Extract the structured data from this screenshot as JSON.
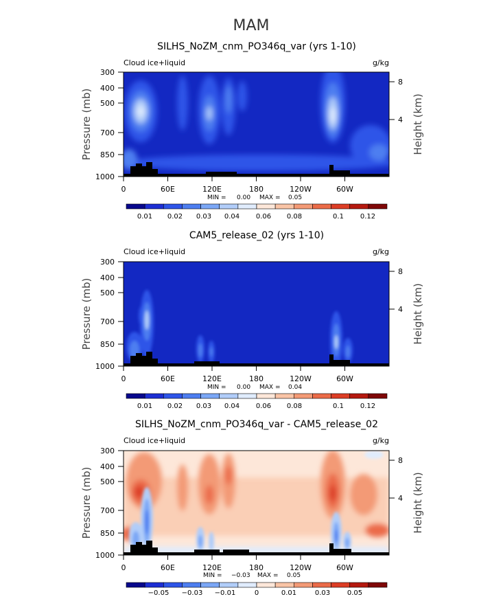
{
  "page": {
    "title": "MAM"
  },
  "palette": {
    "seq": [
      "#08088c",
      "#1d2ed3",
      "#2e55e8",
      "#4d7ef0",
      "#7ba7f6",
      "#b1cdf9",
      "#e0ecfd",
      "#fde7d9",
      "#f9c4a6",
      "#f39a76",
      "#eb6b48",
      "#dc3d25",
      "#b5190f",
      "#7f0707"
    ],
    "bg_dark": "#1328c2"
  },
  "chart_data": [
    {
      "type": "contour",
      "title": "SILHS_NoZM_cnm_PO346q_var (yrs 1-10)",
      "variable": "Cloud ice+liquid",
      "units": "g/kg",
      "ylabel": "Pressure (mb)",
      "ylabel_right": "Height (km)",
      "x_ticks": [
        "0",
        "60E",
        "120E",
        "180",
        "120W",
        "60W"
      ],
      "y_ticks": [
        "300",
        "400",
        "500",
        "700",
        "850",
        "1000"
      ],
      "right_ticks": [
        "8",
        "4"
      ],
      "stats": {
        "min_label": "MIN =",
        "min": "0.00",
        "max_label": "MAX =",
        "max": "0.05"
      },
      "colorbar_labels": [
        "0.01",
        "0.02",
        "0.03",
        "0.04",
        "0.06",
        "0.08",
        "0.1",
        "0.12"
      ]
    },
    {
      "type": "contour",
      "title": "CAM5_release_02 (yrs 1-10)",
      "variable": "Cloud ice+liquid",
      "units": "g/kg",
      "ylabel": "Pressure (mb)",
      "ylabel_right": "Height (km)",
      "x_ticks": [
        "0",
        "60E",
        "120E",
        "180",
        "120W",
        "60W"
      ],
      "y_ticks": [
        "300",
        "400",
        "500",
        "700",
        "850",
        "1000"
      ],
      "right_ticks": [
        "8",
        "4"
      ],
      "stats": {
        "min_label": "MIN =",
        "min": "0.00",
        "max_label": "MAX =",
        "max": "0.04"
      },
      "colorbar_labels": [
        "0.01",
        "0.02",
        "0.03",
        "0.04",
        "0.06",
        "0.08",
        "0.1",
        "0.12"
      ]
    },
    {
      "type": "contour",
      "title": "SILHS_NoZM_cnm_PO346q_var - CAM5_release_02",
      "variable": "Cloud ice+liquid",
      "units": "g/kg",
      "ylabel": "Pressure (mb)",
      "ylabel_right": "Height (km)",
      "x_ticks": [
        "0",
        "60E",
        "120E",
        "180",
        "120W",
        "60W"
      ],
      "y_ticks": [
        "300",
        "400",
        "500",
        "700",
        "850",
        "1000"
      ],
      "right_ticks": [
        "8",
        "4"
      ],
      "stats": {
        "min_label": "MIN =",
        "min": "−0.03",
        "max_label": "MAX =",
        "max": "0.05"
      },
      "colorbar_labels": [
        "−0.05",
        "−0.03",
        "−0.01",
        "0",
        "0.01",
        "0.03",
        "0.05"
      ]
    }
  ]
}
